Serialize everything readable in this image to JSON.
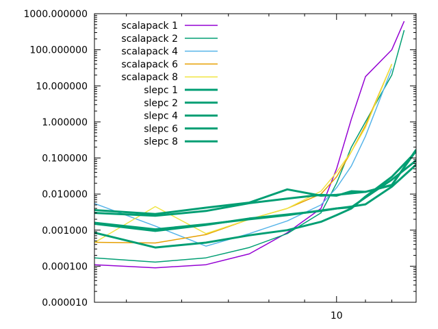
{
  "chart_data": {
    "type": "line",
    "title": "",
    "xlabel": "",
    "ylabel": "",
    "x_scale": "log",
    "y_scale": "log",
    "xlim": [
      4.5,
      13.0
    ],
    "ylim": [
      1e-05,
      1000
    ],
    "grid": false,
    "legend_position": "top-left",
    "x_ticks": [
      {
        "value": 10,
        "label": "10"
      }
    ],
    "y_ticks": [
      {
        "value": 1e-05,
        "label": "0.000010"
      },
      {
        "value": 0.0001,
        "label": "0.000100"
      },
      {
        "value": 0.001,
        "label": "0.001000"
      },
      {
        "value": 0.01,
        "label": "0.010000"
      },
      {
        "value": 0.1,
        "label": "0.100000"
      },
      {
        "value": 1,
        "label": "1.000000"
      },
      {
        "value": 10,
        "label": "10.000000"
      },
      {
        "value": 100,
        "label": "100.000000"
      },
      {
        "value": 1000,
        "label": "1000.000000"
      }
    ],
    "series": [
      {
        "name": "scalapack 1",
        "color": "#9400d3",
        "width": 1.5,
        "x": [
          4.5,
          5.5,
          6.5,
          7.5,
          8.5,
          9.5,
          10.0,
          10.5,
          11.0,
          12.0,
          12.5
        ],
        "y": [
          0.00011,
          9e-05,
          0.00011,
          0.00022,
          0.00085,
          0.004,
          0.05,
          1.2,
          18,
          100,
          620
        ]
      },
      {
        "name": "scalapack 2",
        "color": "#009e73",
        "width": 1.5,
        "x": [
          4.5,
          5.5,
          6.5,
          7.5,
          8.5,
          9.5,
          10.0,
          10.5,
          11.0,
          12.0,
          12.5
        ],
        "y": [
          0.00017,
          0.00013,
          0.00017,
          0.00033,
          0.0008,
          0.003,
          0.02,
          0.2,
          1.0,
          20,
          350
        ]
      },
      {
        "name": "scalapack 4",
        "color": "#56b4e9",
        "width": 1.5,
        "x": [
          4.5,
          5.5,
          6.5,
          7.5,
          8.5,
          9.5,
          10.0,
          10.5,
          11.0,
          12.0
        ],
        "y": [
          0.0055,
          0.0013,
          0.00036,
          0.0008,
          0.0018,
          0.005,
          0.015,
          0.06,
          0.4,
          30
        ]
      },
      {
        "name": "scalapack 6",
        "color": "#e69f00",
        "width": 1.5,
        "x": [
          4.5,
          5.5,
          6.5,
          7.5,
          8.5,
          9.5,
          10.0,
          10.5,
          11.0,
          12.0
        ],
        "y": [
          0.00046,
          0.00044,
          0.00075,
          0.002,
          0.004,
          0.01,
          0.03,
          0.15,
          0.8,
          40
        ]
      },
      {
        "name": "scalapack 8",
        "color": "#f0e442",
        "width": 1.5,
        "x": [
          4.5,
          5.5,
          6.5,
          7.5,
          8.5,
          9.5,
          10.0,
          10.5,
          11.0,
          12.0
        ],
        "y": [
          0.00045,
          0.0045,
          0.0008,
          0.002,
          0.004,
          0.012,
          0.04,
          0.15,
          0.7,
          40
        ]
      },
      {
        "name": "slepc 1",
        "color": "#009e73",
        "width": 3,
        "x": [
          4.5,
          5.5,
          6.5,
          7.5,
          8.5,
          9.5,
          10.0,
          10.5,
          11.0,
          12.0,
          13.0
        ],
        "y": [
          0.0036,
          0.0028,
          0.0042,
          0.0058,
          0.0135,
          0.009,
          0.0095,
          0.0105,
          0.0115,
          0.0175,
          0.17
        ]
      },
      {
        "name": "slepc 2",
        "color": "#009e73",
        "width": 3,
        "x": [
          4.5,
          5.5,
          6.5,
          7.5,
          8.5,
          9.5,
          10.0,
          10.5,
          11.0,
          12.0,
          13.0
        ],
        "y": [
          0.003,
          0.0025,
          0.0034,
          0.0056,
          0.0075,
          0.0095,
          0.009,
          0.012,
          0.0115,
          0.018,
          0.16
        ]
      },
      {
        "name": "slepc 4",
        "color": "#009e73",
        "width": 3,
        "x": [
          4.5,
          5.5,
          6.5,
          7.5,
          8.5,
          9.5,
          10.0,
          10.5,
          11.0,
          12.0,
          13.0
        ],
        "y": [
          0.0016,
          0.00105,
          0.00145,
          0.002,
          0.0026,
          0.0035,
          0.004,
          0.0043,
          0.008,
          0.025,
          0.085
        ]
      },
      {
        "name": "slepc 6",
        "color": "#009e73",
        "width": 3,
        "x": [
          4.5,
          5.5,
          6.5,
          7.5,
          8.5,
          9.5,
          10.0,
          10.5,
          11.0,
          12.0,
          13.0
        ],
        "y": [
          0.0015,
          0.00095,
          0.0014,
          0.0021,
          0.0027,
          0.0034,
          0.004,
          0.0045,
          0.0052,
          0.016,
          0.065
        ]
      },
      {
        "name": "slepc 8",
        "color": "#009e73",
        "width": 3,
        "x": [
          4.5,
          5.5,
          6.5,
          7.5,
          8.5,
          9.5,
          10.0,
          10.5,
          11.0,
          12.0,
          13.0
        ],
        "y": [
          0.00085,
          0.00033,
          0.00045,
          0.00072,
          0.001,
          0.0017,
          0.0026,
          0.004,
          0.0085,
          0.03,
          0.15
        ]
      }
    ]
  }
}
